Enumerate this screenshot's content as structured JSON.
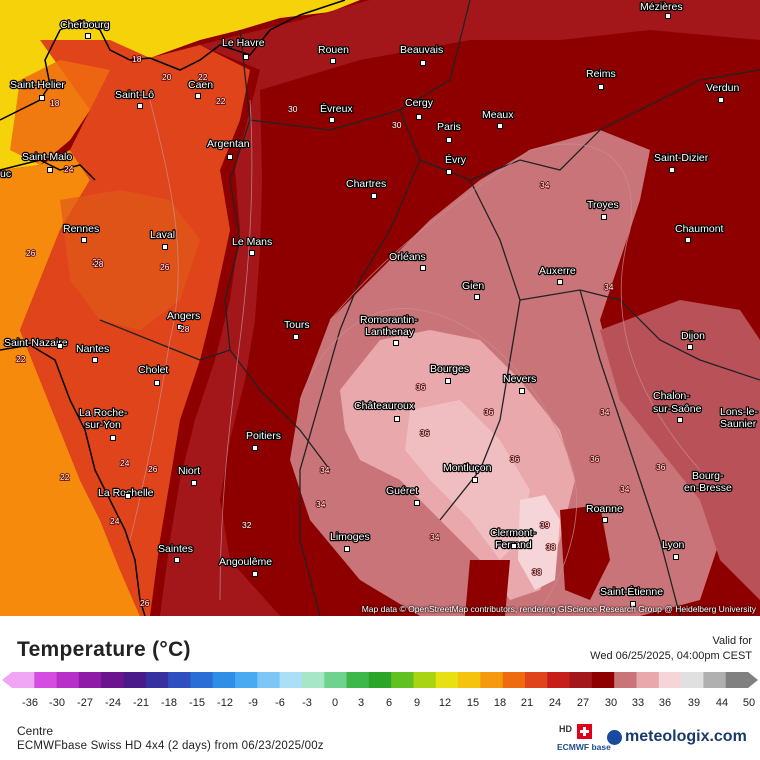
{
  "map": {
    "attribution": "Map data © OpenStreetMap contributors, rendering GIScience Research Group @ Heidelberg University",
    "cities": [
      {
        "name": "Cherbourg"
      },
      {
        "name": "Le Havre"
      },
      {
        "name": "Rouen"
      },
      {
        "name": "Beauvais"
      },
      {
        "name": "Mézières"
      },
      {
        "name": "Saint-Helier"
      },
      {
        "name": "Saint-Lô"
      },
      {
        "name": "Caen"
      },
      {
        "name": "Évreux"
      },
      {
        "name": "Cergy"
      },
      {
        "name": "Meaux"
      },
      {
        "name": "Reims"
      },
      {
        "name": "Verdun"
      },
      {
        "name": "Paris"
      },
      {
        "name": "Évry"
      },
      {
        "name": "Saint-Malo"
      },
      {
        "name": "Argentan"
      },
      {
        "name": "Saint-Dizier"
      },
      {
        "name": "Chartres"
      },
      {
        "name": "Troyes"
      },
      {
        "name": "Rennes"
      },
      {
        "name": "Laval"
      },
      {
        "name": "Le Mans"
      },
      {
        "name": "Chaumont"
      },
      {
        "name": "Orléans"
      },
      {
        "name": "Auxerre"
      },
      {
        "name": "Gien"
      },
      {
        "name": "Angers"
      },
      {
        "name": "Tours"
      },
      {
        "name": "Romorantin-"
      },
      {
        "name": "Lanthenay"
      },
      {
        "name": "Dijon"
      },
      {
        "name": "Saint-Nazaire"
      },
      {
        "name": "Nantes"
      },
      {
        "name": "Cholet"
      },
      {
        "name": "Bourges"
      },
      {
        "name": "Nevers"
      },
      {
        "name": "Châteauroux"
      },
      {
        "name": "Chalon-"
      },
      {
        "name": "sur-Saône"
      },
      {
        "name": "Lons-le-"
      },
      {
        "name": "Saunier"
      },
      {
        "name": "La Roche-"
      },
      {
        "name": "sur-Yon"
      },
      {
        "name": "Poitiers"
      },
      {
        "name": "Montluçon"
      },
      {
        "name": "Niort"
      },
      {
        "name": "Bourg-"
      },
      {
        "name": "en-Bresse"
      },
      {
        "name": "La Rochelle"
      },
      {
        "name": "Guéret"
      },
      {
        "name": "Roanne"
      },
      {
        "name": "Clermont-"
      },
      {
        "name": "Ferrand"
      },
      {
        "name": "Limoges"
      },
      {
        "name": "Lyon"
      },
      {
        "name": "Saintes"
      },
      {
        "name": "Angoulême"
      },
      {
        "name": "Saint-Étienne"
      },
      {
        "name": "uc"
      }
    ],
    "iso_labels": [
      "18",
      "18",
      "20",
      "22",
      "22",
      "24",
      "26",
      "26",
      "28",
      "30",
      "32",
      "34",
      "34",
      "34",
      "34",
      "34",
      "34",
      "34",
      "36",
      "36",
      "36",
      "36",
      "36",
      "36",
      "38",
      "38",
      "39",
      "22",
      "24",
      "26",
      "24",
      "22",
      "26",
      "28",
      "28",
      "30"
    ],
    "colors": {
      "ocean": "#f58a0c",
      "channel": "#f5d20a",
      "hot": "#8e0000",
      "hotter": "#a3171b",
      "pink": "#c97479",
      "light_pink": "#e8a8ac",
      "orange_red": "#e0441a"
    }
  },
  "legend": {
    "title": "Temperature (°C)",
    "valid_label": "Valid for",
    "valid_time": "Wed 06/25/2025, 04:00pm CEST",
    "ticks": [
      "-36",
      "-30",
      "-27",
      "-24",
      "-21",
      "-18",
      "-15",
      "-12",
      "-9",
      "-6",
      "-3",
      "0",
      "3",
      "6",
      "9",
      "12",
      "15",
      "18",
      "21",
      "24",
      "27",
      "30",
      "33",
      "36",
      "39",
      "44",
      "50"
    ],
    "colors": [
      "#f0a6f5",
      "#d44ce0",
      "#b52fc8",
      "#8f1aa8",
      "#6a1490",
      "#4b1a8a",
      "#3730a0",
      "#2f4fc0",
      "#2b6fd6",
      "#2f8fe6",
      "#48aaf0",
      "#7cc7f5",
      "#aadff5",
      "#a8e6c8",
      "#6fd38f",
      "#3cb84a",
      "#2aa52a",
      "#62c020",
      "#a8d414",
      "#e6e014",
      "#f5c20e",
      "#f59a0c",
      "#ef6b10",
      "#e0441a",
      "#c81e1a",
      "#a3171b",
      "#8e0000",
      "#c97479",
      "#e8a8ac",
      "#f5d5d8",
      "#e0e0e0",
      "#b0b0b0",
      "#808080"
    ],
    "region": "Centre",
    "model": "ECMWFbase Swiss HD 4x4 (2 days) from 06/23/2025/00z",
    "brand": "meteologix.com",
    "hd": "HD",
    "ecmwf": "ECMWF base"
  }
}
